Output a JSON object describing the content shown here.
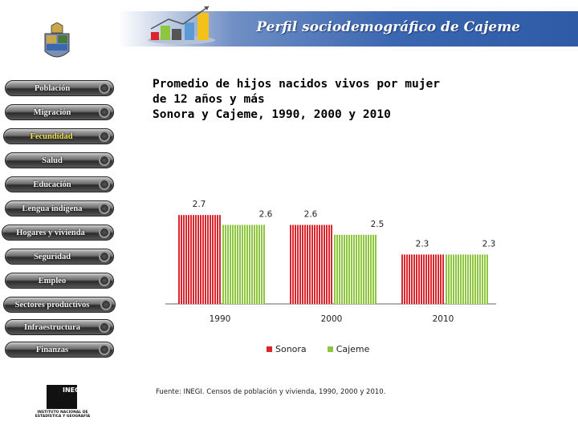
{
  "header": {
    "title": "Perfil sociodemográfico de Cajeme"
  },
  "sidebar": {
    "items": [
      {
        "label": "Población"
      },
      {
        "label": "Migración"
      },
      {
        "label": "Fecundidad"
      },
      {
        "label": "Salud"
      },
      {
        "label": "Educación"
      },
      {
        "label": "Lengua indígena"
      },
      {
        "label": "Hogares y vivienda"
      },
      {
        "label": "Seguridad"
      },
      {
        "label": "Empleo"
      },
      {
        "label": "Sectores productivos"
      },
      {
        "label": "Infraestructura"
      },
      {
        "label": "Finanzas"
      }
    ]
  },
  "chart_data": {
    "type": "bar",
    "title_lines": [
      "Promedio de hijos nacidos vivos por mujer",
      "de 12 años y más",
      "Sonora y Cajeme, 1990, 2000 y 2010"
    ],
    "categories": [
      "1990",
      "2000",
      "2010"
    ],
    "series": [
      {
        "name": "Sonora",
        "values": [
          2.7,
          2.6,
          2.3
        ],
        "color": "#d9262c"
      },
      {
        "name": "Cajeme",
        "values": [
          2.6,
          2.5,
          2.3
        ],
        "color": "#8fc641"
      }
    ],
    "ylim": [
      1.8,
      2.75
    ],
    "grid": false,
    "legend": "bottom"
  },
  "source": "Fuente: INEGI. Censos de población y vivienda, 1990, 2000 y 2010.",
  "logos": {
    "inegi_text": "INEGI",
    "inegi_caption": "INSTITUTO NACIONAL DE ESTADÍSTICA Y GEOGRAFÍA"
  }
}
